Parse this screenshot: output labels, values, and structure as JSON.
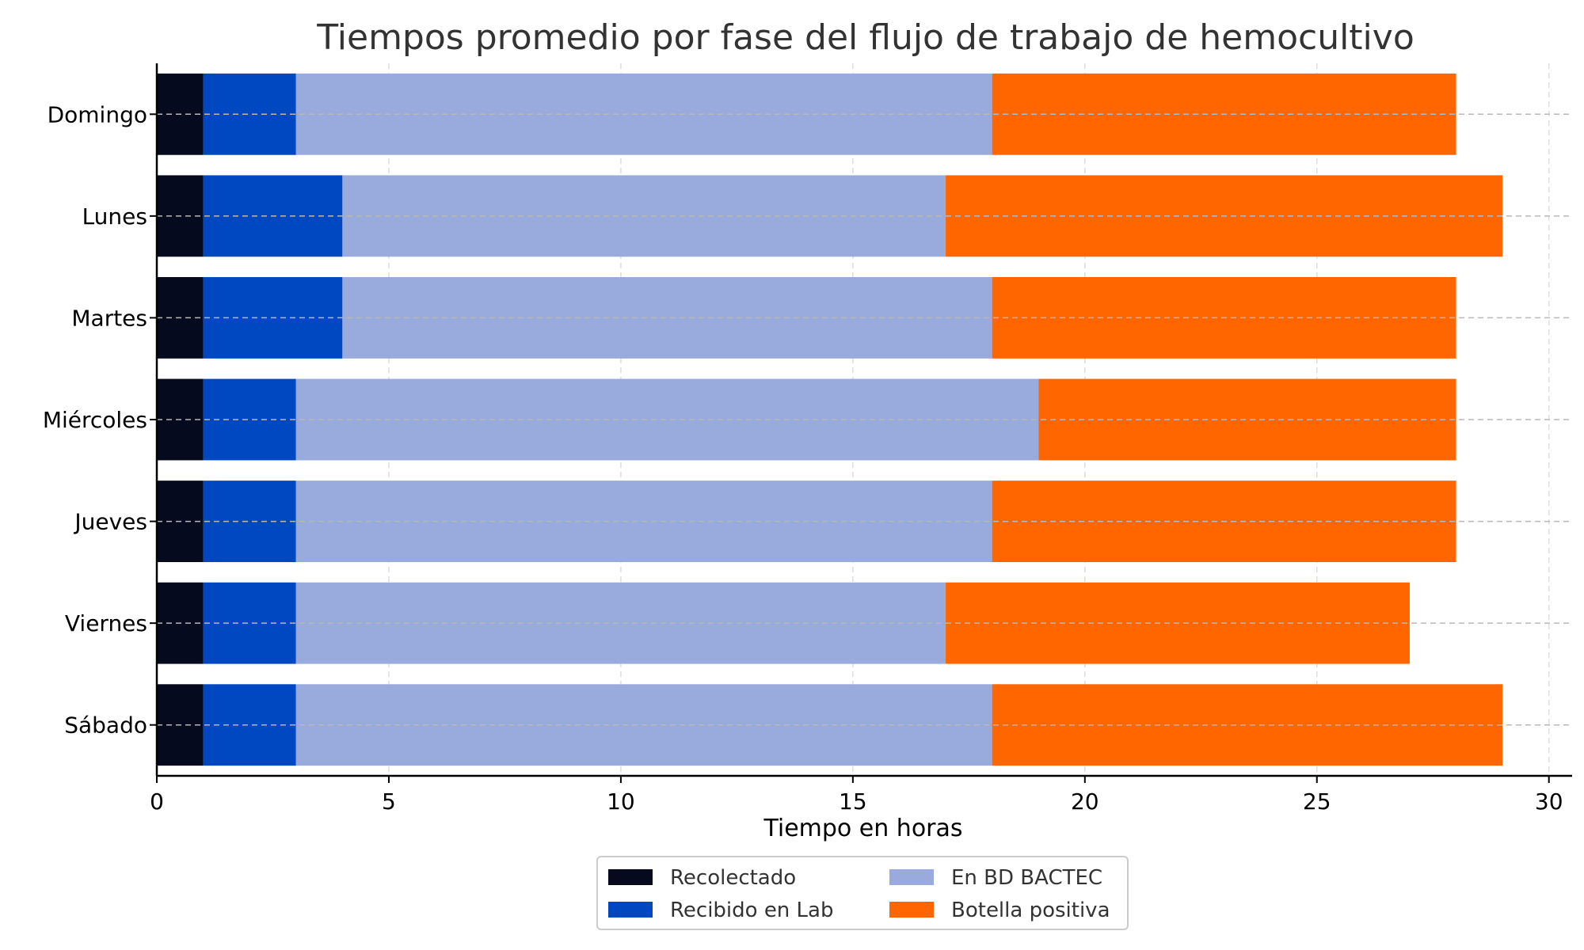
{
  "chart_data": {
    "type": "bar",
    "orientation": "horizontal",
    "stacked": true,
    "title": "Tiempos promedio por fase del flujo de trabajo de hemocultivo",
    "xlabel": "Tiempo en horas",
    "ylabel": "",
    "xlim": [
      0,
      30.5
    ],
    "xticks": [
      0,
      5,
      10,
      15,
      20,
      25,
      30
    ],
    "grid": true,
    "legend_position": "bottom-center",
    "categories": [
      "Domingo",
      "Lunes",
      "Martes",
      "Miércoles",
      "Jueves",
      "Viernes",
      "Sábado"
    ],
    "series": [
      {
        "name": "Recolectado",
        "color": "#050a1e",
        "values": [
          1,
          1,
          1,
          1,
          1,
          1,
          1
        ]
      },
      {
        "name": "Recibido en Lab",
        "color": "#0047c2",
        "values": [
          2,
          3,
          3,
          2,
          2,
          2,
          2
        ]
      },
      {
        "name": "En BD BACTEC",
        "color": "#99aadc",
        "values": [
          15,
          13,
          14,
          16,
          15,
          14,
          15
        ]
      },
      {
        "name": "Botella positiva",
        "color": "#ff6600",
        "values": [
          10,
          12,
          10,
          9,
          10,
          10,
          11
        ]
      }
    ]
  }
}
